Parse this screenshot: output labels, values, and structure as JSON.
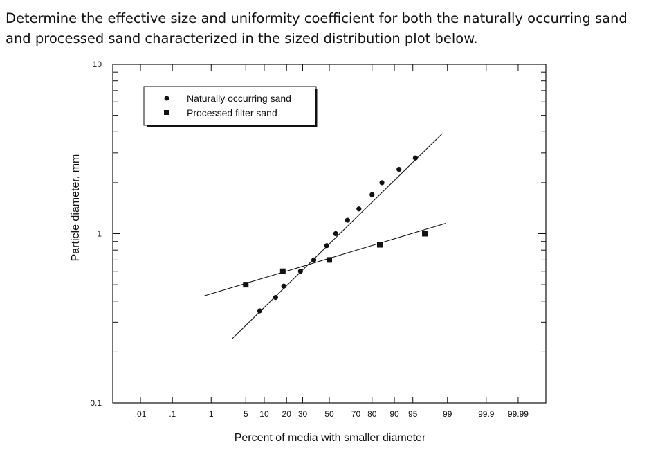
{
  "question": {
    "before": "Determine the effective size and uniformity coefficient for ",
    "underlined": "both",
    "after": " the naturally occurring sand and processed sand characterized in the sized distribution plot below."
  },
  "chart_data": {
    "type": "scatter",
    "title": "",
    "xlabel": "Percent of media with smaller diameter",
    "ylabel": "Particle diameter, mm",
    "x_scale": "probability",
    "y_scale": "log",
    "xlim": [
      0.001,
      99.999
    ],
    "ylim": [
      0.1,
      10
    ],
    "x_tick_labels": [
      ".01",
      ".1",
      "1",
      "5",
      "10",
      "20",
      "30",
      "50",
      "70",
      "80",
      "90",
      "95",
      "99",
      "99.9",
      "99.99"
    ],
    "x_tick_values": [
      0.01,
      0.1,
      1,
      5,
      10,
      20,
      30,
      50,
      70,
      80,
      90,
      95,
      99,
      99.9,
      99.99
    ],
    "y_tick_labels": [
      "0.1",
      "1",
      "10"
    ],
    "y_tick_values": [
      0.1,
      1,
      10
    ],
    "legend_position": "top-left",
    "series": [
      {
        "name": "Naturally occurring sand",
        "marker": "circle",
        "points": [
          [
            8.5,
            0.35
          ],
          [
            14.5,
            0.42
          ],
          [
            18.5,
            0.49
          ],
          [
            28.5,
            0.6
          ],
          [
            38,
            0.7
          ],
          [
            48,
            0.85
          ],
          [
            55,
            1.0
          ],
          [
            64,
            1.2
          ],
          [
            72,
            1.4
          ],
          [
            80,
            1.7
          ],
          [
            85,
            2.0
          ],
          [
            91.5,
            2.4
          ],
          [
            95.5,
            2.8
          ]
        ],
        "fit_line": [
          [
            2.8,
            0.24
          ],
          [
            98.7,
            3.9
          ]
        ]
      },
      {
        "name": "Processed filter sand",
        "marker": "square",
        "points": [
          [
            5,
            0.5
          ],
          [
            18,
            0.6
          ],
          [
            50,
            0.7
          ],
          [
            84,
            0.86
          ],
          [
            97,
            1.0
          ]
        ],
        "fit_line": [
          [
            0.7,
            0.43
          ],
          [
            98.9,
            1.15
          ]
        ]
      }
    ]
  }
}
